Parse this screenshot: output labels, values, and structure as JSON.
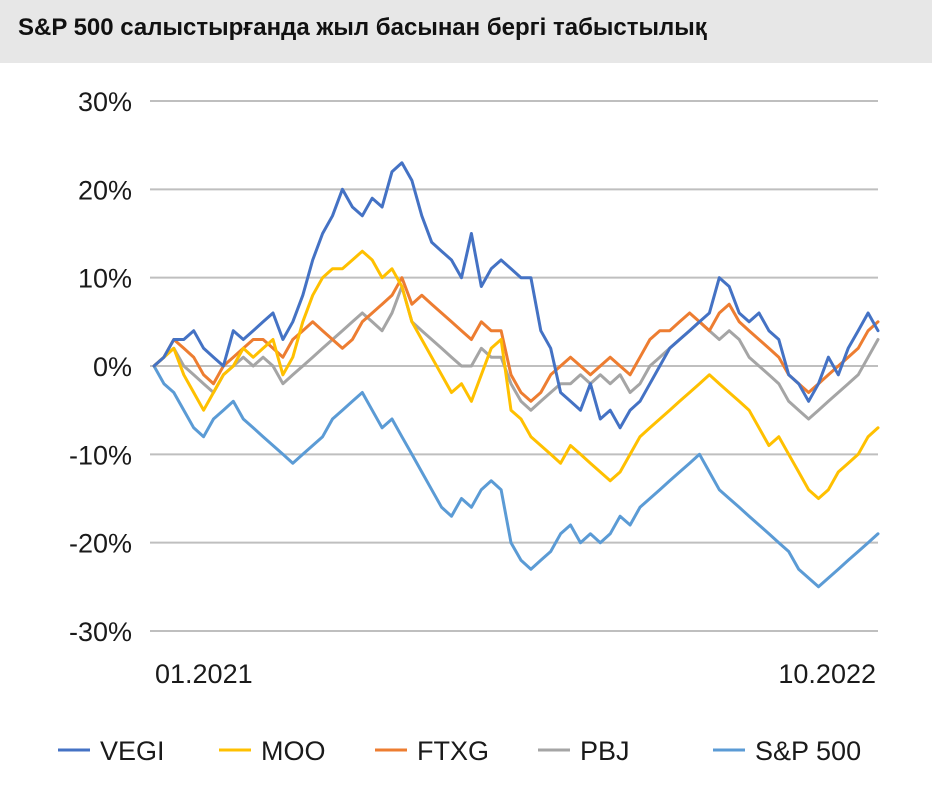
{
  "chart_data": {
    "type": "line",
    "title": "S&P 500 салыстырғанда жыл басынан бергі табыстылық",
    "xlabel": "",
    "ylabel": "",
    "x_tick_labels": [
      "01.2021",
      "10.2022"
    ],
    "x_range": [
      "2021-01",
      "2022-10"
    ],
    "y_ticks": [
      30,
      20,
      10,
      0,
      -10,
      -20,
      -30
    ],
    "y_tick_labels": [
      "30%",
      "20%",
      "10%",
      "0%",
      "-10%",
      "-20%",
      "-30%"
    ],
    "ylim": [
      -30,
      30
    ],
    "grid": true,
    "legend_position": "bottom",
    "series": [
      {
        "name": "VEGI",
        "color": "#4472c4",
        "values": [
          0,
          1,
          3,
          3,
          4,
          2,
          1,
          0,
          4,
          3,
          4,
          5,
          6,
          3,
          5,
          8,
          12,
          15,
          17,
          20,
          18,
          17,
          19,
          18,
          22,
          23,
          21,
          17,
          14,
          13,
          12,
          10,
          15,
          9,
          11,
          12,
          11,
          10,
          10,
          4,
          2,
          -3,
          -4,
          -5,
          -2,
          -6,
          -5,
          -7,
          -5,
          -4,
          -2,
          0,
          2,
          3,
          4,
          5,
          6,
          10,
          9,
          6,
          5,
          6,
          4,
          3,
          -1,
          -2,
          -4,
          -2,
          1,
          -1,
          2,
          4,
          6,
          4
        ]
      },
      {
        "name": "MOO",
        "color": "#ffc000",
        "values": [
          0,
          1,
          2,
          -1,
          -3,
          -5,
          -3,
          -1,
          0,
          2,
          1,
          2,
          3,
          -1,
          1,
          5,
          8,
          10,
          11,
          11,
          12,
          13,
          12,
          10,
          11,
          9,
          5,
          3,
          1,
          -1,
          -3,
          -2,
          -4,
          -1,
          2,
          3,
          -5,
          -6,
          -8,
          -9,
          -10,
          -11,
          -9,
          -10,
          -11,
          -12,
          -13,
          -12,
          -10,
          -8,
          -7,
          -6,
          -5,
          -4,
          -3,
          -2,
          -1,
          -2,
          -3,
          -4,
          -5,
          -7,
          -9,
          -8,
          -10,
          -12,
          -14,
          -15,
          -14,
          -12,
          -11,
          -10,
          -8,
          -7
        ]
      },
      {
        "name": "FTXG",
        "color": "#ed7d31",
        "values": [
          0,
          1,
          3,
          2,
          1,
          -1,
          -2,
          0,
          1,
          2,
          3,
          3,
          2,
          1,
          3,
          4,
          5,
          4,
          3,
          2,
          3,
          5,
          6,
          7,
          8,
          10,
          7,
          8,
          7,
          6,
          5,
          4,
          3,
          5,
          4,
          4,
          -1,
          -3,
          -4,
          -3,
          -1,
          0,
          1,
          0,
          -1,
          0,
          1,
          0,
          -1,
          1,
          3,
          4,
          4,
          5,
          6,
          5,
          4,
          6,
          7,
          5,
          4,
          3,
          2,
          1,
          -1,
          -2,
          -3,
          -2,
          -1,
          0,
          1,
          2,
          4,
          5
        ]
      },
      {
        "name": "PBJ",
        "color": "#a5a5a5",
        "values": [
          0,
          1,
          2,
          0,
          -1,
          -2,
          -3,
          -1,
          0,
          1,
          0,
          1,
          0,
          -2,
          -1,
          0,
          1,
          2,
          3,
          4,
          5,
          6,
          5,
          4,
          6,
          9,
          5,
          4,
          3,
          2,
          1,
          0,
          0,
          2,
          1,
          1,
          -2,
          -4,
          -5,
          -4,
          -3,
          -2,
          -2,
          -1,
          -2,
          -1,
          -2,
          -1,
          -3,
          -2,
          0,
          1,
          2,
          3,
          4,
          5,
          4,
          3,
          4,
          3,
          1,
          0,
          -1,
          -2,
          -4,
          -5,
          -6,
          -5,
          -4,
          -3,
          -2,
          -1,
          1,
          3
        ]
      },
      {
        "name": "S&P 500",
        "color": "#5b9bd5",
        "values": [
          0,
          -2,
          -3,
          -5,
          -7,
          -8,
          -6,
          -5,
          -4,
          -6,
          -7,
          -8,
          -9,
          -10,
          -11,
          -10,
          -9,
          -8,
          -6,
          -5,
          -4,
          -3,
          -5,
          -7,
          -6,
          -8,
          -10,
          -12,
          -14,
          -16,
          -17,
          -15,
          -16,
          -14,
          -13,
          -14,
          -20,
          -22,
          -23,
          -22,
          -21,
          -19,
          -18,
          -20,
          -19,
          -20,
          -19,
          -17,
          -18,
          -16,
          -15,
          -14,
          -13,
          -12,
          -11,
          -10,
          -12,
          -14,
          -15,
          -16,
          -17,
          -18,
          -19,
          -20,
          -21,
          -23,
          -24,
          -25,
          -24,
          -23,
          -22,
          -21,
          -20,
          -19
        ]
      }
    ]
  }
}
